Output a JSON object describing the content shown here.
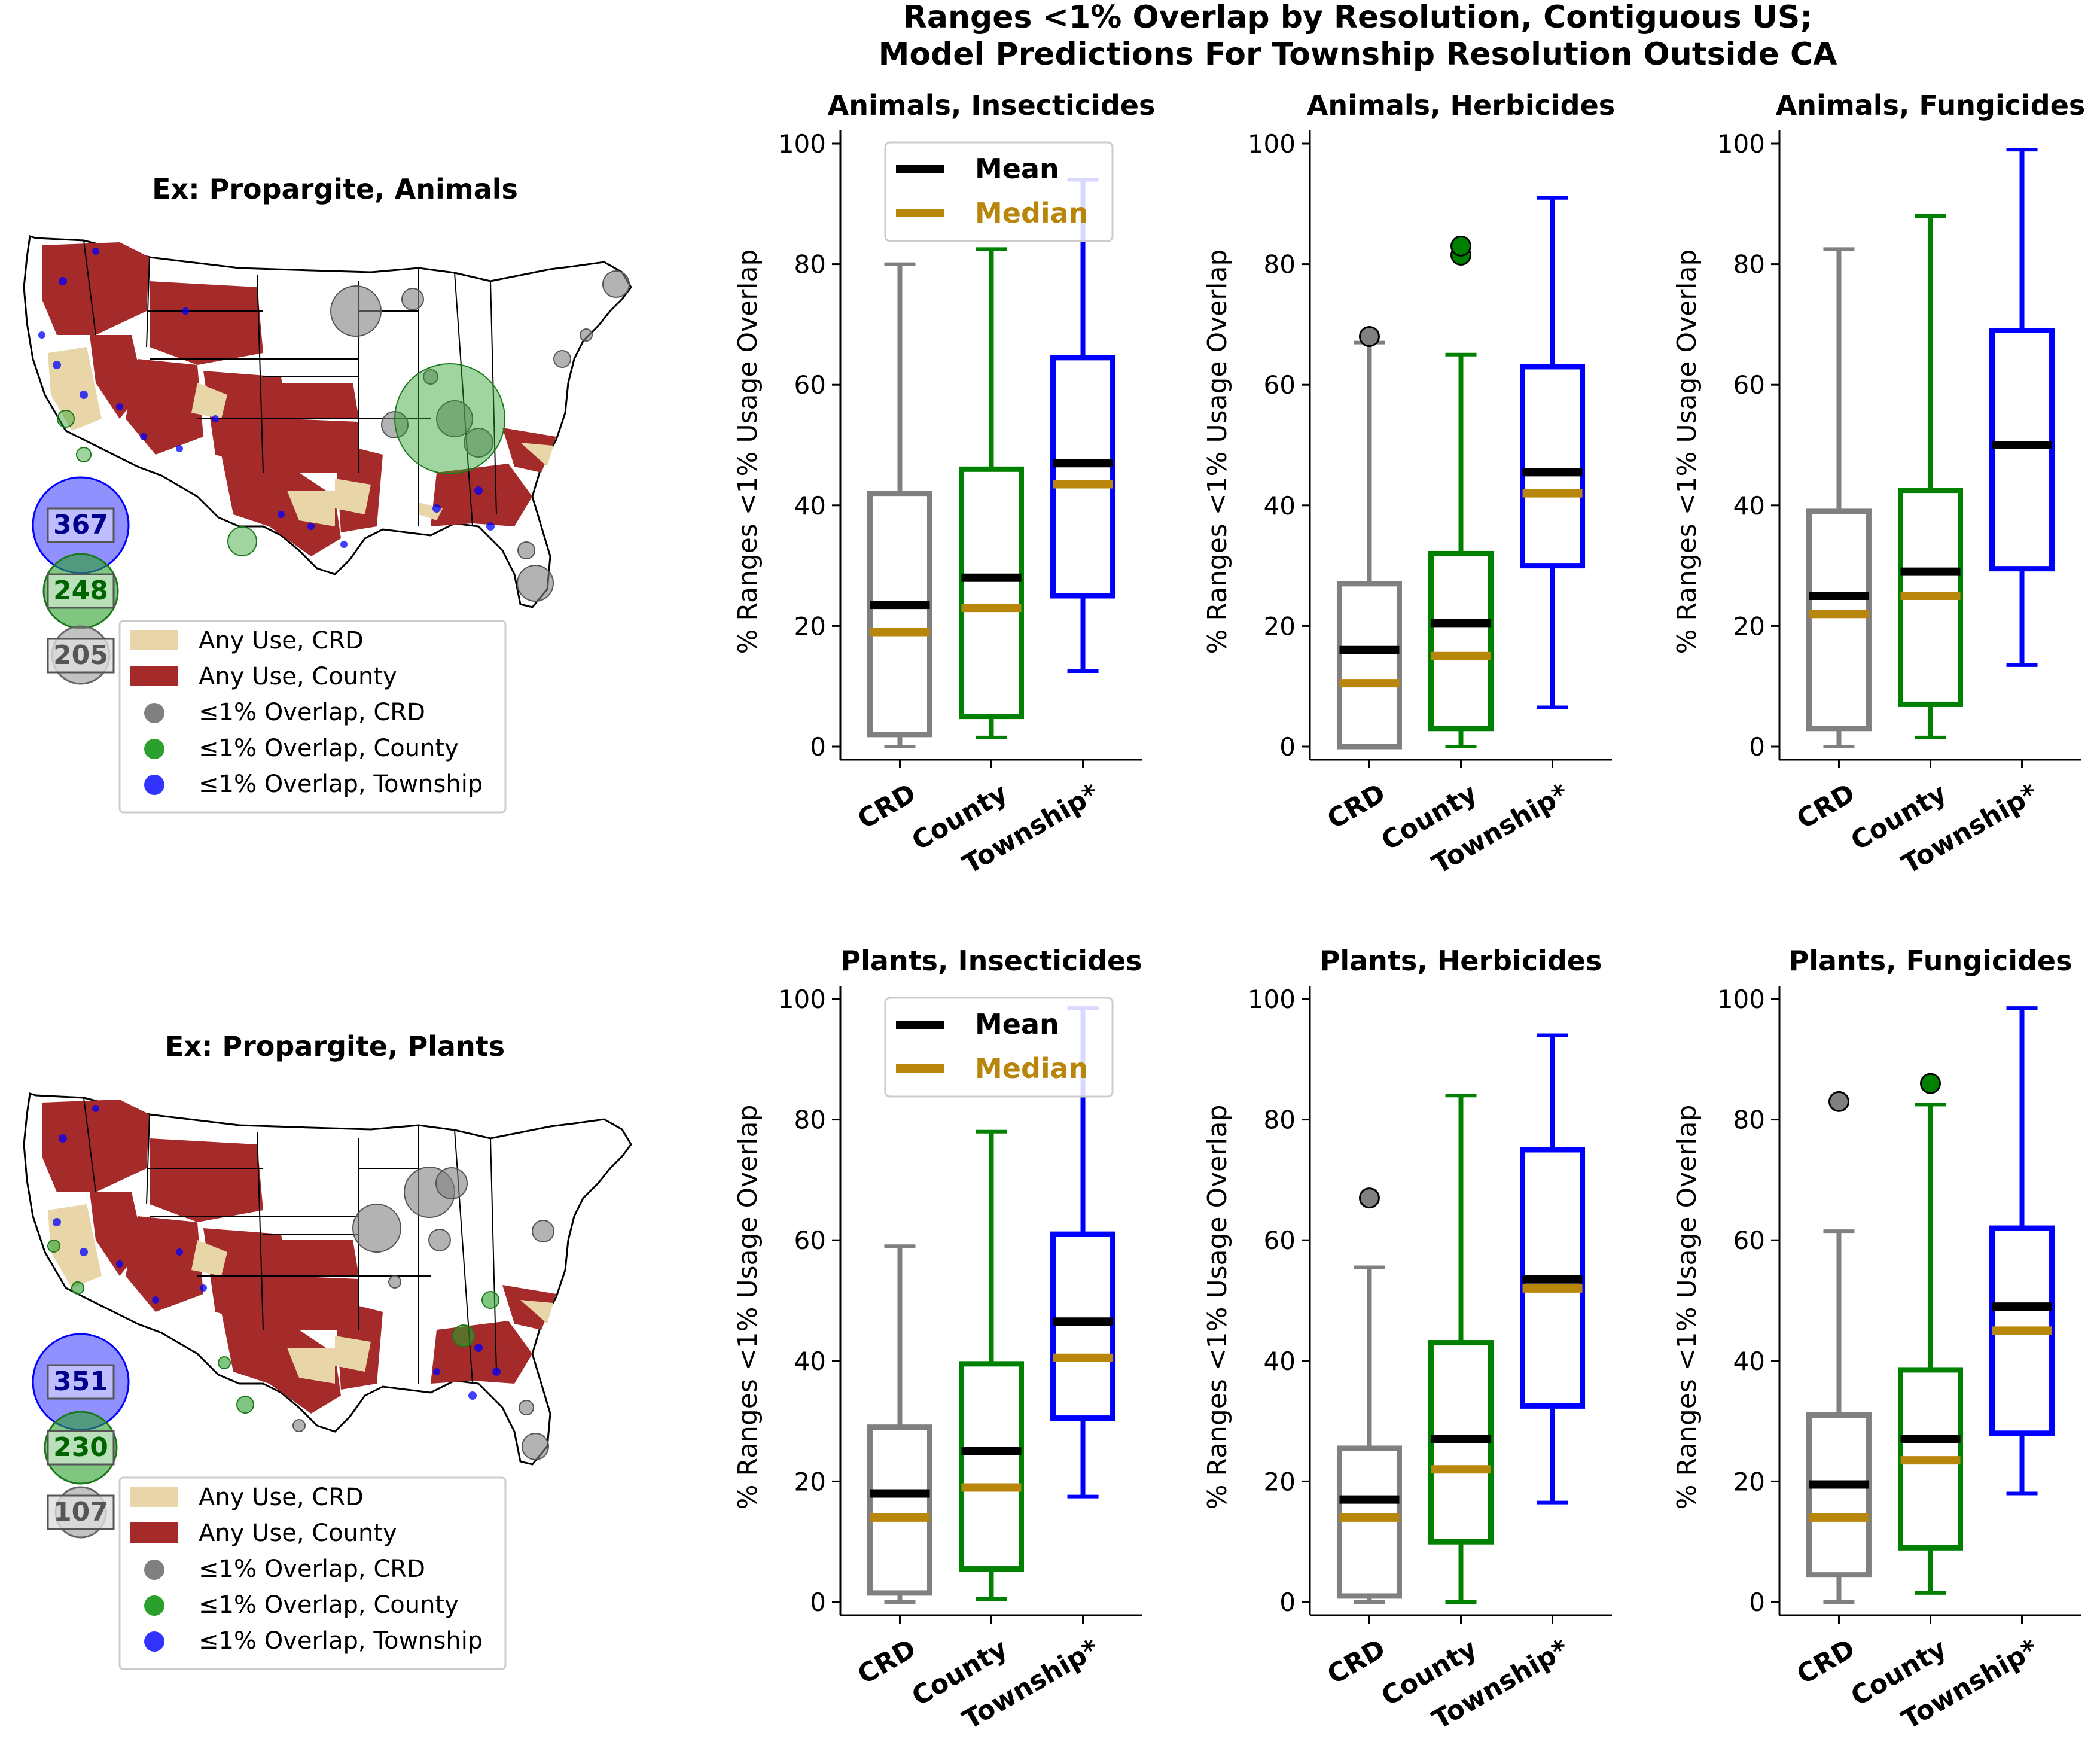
{
  "figure": {
    "title_line1": "Ranges <1% Overlap by Resolution, Contiguous US;",
    "title_line2": "Model Predictions For Township Resolution Outside CA"
  },
  "maps": [
    {
      "title": "Ex: Propargite, Animals",
      "counts": {
        "township": "367",
        "county": "248",
        "crd": "205"
      },
      "legend": [
        "Any Use, CRD",
        "Any Use, County",
        "≤1% Overlap, CRD",
        "≤1% Overlap, County",
        "≤1% Overlap, Township"
      ]
    },
    {
      "title": "Ex: Propargite, Plants",
      "counts": {
        "township": "351",
        "county": "230",
        "crd": "107"
      },
      "legend": [
        "Any Use, CRD",
        "Any Use, County",
        "≤1% Overlap, CRD",
        "≤1% Overlap, County",
        "≤1% Overlap, Township"
      ]
    }
  ],
  "colors": {
    "crd": "#808080",
    "county": "#008000",
    "township": "#0000ff",
    "mean": "#000000",
    "median": "#b8860b",
    "any_use_crd": "#e8d6a8",
    "any_use_county": "#a52a2a"
  },
  "legend_box": {
    "mean": "Mean",
    "median": "Median"
  },
  "chart_data": [
    {
      "type": "box",
      "title": "Animals, Insecticides",
      "ylabel": "% Ranges <1% Usage Overlap",
      "ylim": [
        0,
        100
      ],
      "yticks": [
        "0",
        "20",
        "40",
        "60",
        "80",
        "100"
      ],
      "categories": [
        "CRD",
        "County",
        "Township*"
      ],
      "boxes": [
        {
          "whisker_low": 0,
          "q1": 2,
          "median": 19,
          "mean": 23.5,
          "q3": 42,
          "whisker_high": 80,
          "outliers": []
        },
        {
          "whisker_low": 1.5,
          "q1": 5,
          "median": 23,
          "mean": 28,
          "q3": 46,
          "whisker_high": 82.5,
          "outliers": []
        },
        {
          "whisker_low": 12.5,
          "q1": 25,
          "median": 43.5,
          "mean": 47,
          "q3": 64.5,
          "whisker_high": 94,
          "outliers": []
        }
      ],
      "legend": true
    },
    {
      "type": "box",
      "title": "Animals, Herbicides",
      "ylabel": "% Ranges <1% Usage Overlap",
      "ylim": [
        0,
        100
      ],
      "yticks": [
        "0",
        "20",
        "40",
        "60",
        "80",
        "100"
      ],
      "categories": [
        "CRD",
        "County",
        "Township*"
      ],
      "boxes": [
        {
          "whisker_low": 0,
          "q1": 0,
          "median": 10.5,
          "mean": 16,
          "q3": 27,
          "whisker_high": 67,
          "outliers": [
            68
          ]
        },
        {
          "whisker_low": 0,
          "q1": 3,
          "median": 15,
          "mean": 20.5,
          "q3": 32,
          "whisker_high": 65,
          "outliers": [
            81.5,
            83
          ]
        },
        {
          "whisker_low": 6.5,
          "q1": 30,
          "median": 42,
          "mean": 45.5,
          "q3": 63,
          "whisker_high": 91,
          "outliers": []
        }
      ],
      "legend": false
    },
    {
      "type": "box",
      "title": "Animals, Fungicides",
      "ylabel": "% Ranges <1% Usage Overlap",
      "ylim": [
        0,
        100
      ],
      "yticks": [
        "0",
        "20",
        "40",
        "60",
        "80",
        "100"
      ],
      "categories": [
        "CRD",
        "County",
        "Township*"
      ],
      "boxes": [
        {
          "whisker_low": 0,
          "q1": 3,
          "median": 22,
          "mean": 25,
          "q3": 39,
          "whisker_high": 82.5,
          "outliers": []
        },
        {
          "whisker_low": 1.5,
          "q1": 7,
          "median": 25,
          "mean": 29,
          "q3": 42.5,
          "whisker_high": 88,
          "outliers": []
        },
        {
          "whisker_low": 13.5,
          "q1": 29.5,
          "median": 50,
          "mean": 50,
          "q3": 69,
          "whisker_high": 99,
          "outliers": []
        }
      ],
      "legend": false
    },
    {
      "type": "box",
      "title": "Plants, Insecticides",
      "ylabel": "% Ranges <1% Usage Overlap",
      "ylim": [
        0,
        100
      ],
      "yticks": [
        "0",
        "20",
        "40",
        "60",
        "80",
        "100"
      ],
      "categories": [
        "CRD",
        "County",
        "Township*"
      ],
      "boxes": [
        {
          "whisker_low": 0,
          "q1": 1.5,
          "median": 14,
          "mean": 18,
          "q3": 29,
          "whisker_high": 59,
          "outliers": []
        },
        {
          "whisker_low": 0.5,
          "q1": 5.5,
          "median": 19,
          "mean": 25,
          "q3": 39.5,
          "whisker_high": 78,
          "outliers": []
        },
        {
          "whisker_low": 17.5,
          "q1": 30.5,
          "median": 40.5,
          "mean": 46.5,
          "q3": 61,
          "whisker_high": 98.5,
          "outliers": []
        }
      ],
      "legend": true
    },
    {
      "type": "box",
      "title": "Plants, Herbicides",
      "ylabel": "% Ranges <1% Usage Overlap",
      "ylim": [
        0,
        100
      ],
      "yticks": [
        "0",
        "20",
        "40",
        "60",
        "80",
        "100"
      ],
      "categories": [
        "CRD",
        "County",
        "Township*"
      ],
      "boxes": [
        {
          "whisker_low": 0,
          "q1": 1,
          "median": 14,
          "mean": 17,
          "q3": 25.5,
          "whisker_high": 55.5,
          "outliers": [
            67
          ]
        },
        {
          "whisker_low": 0,
          "q1": 10,
          "median": 22,
          "mean": 27,
          "q3": 43,
          "whisker_high": 84,
          "outliers": []
        },
        {
          "whisker_low": 16.5,
          "q1": 32.5,
          "median": 52,
          "mean": 53.5,
          "q3": 75,
          "whisker_high": 94,
          "outliers": []
        }
      ],
      "legend": false
    },
    {
      "type": "box",
      "title": "Plants, Fungicides",
      "ylabel": "% Ranges <1% Usage Overlap",
      "ylim": [
        0,
        100
      ],
      "yticks": [
        "0",
        "20",
        "40",
        "60",
        "80",
        "100"
      ],
      "categories": [
        "CRD",
        "County",
        "Township*"
      ],
      "boxes": [
        {
          "whisker_low": 0,
          "q1": 4.5,
          "median": 14,
          "mean": 19.5,
          "q3": 31,
          "whisker_high": 61.5,
          "outliers": [
            83
          ]
        },
        {
          "whisker_low": 1.5,
          "q1": 9,
          "median": 23.5,
          "mean": 27,
          "q3": 38.5,
          "whisker_high": 82.5,
          "outliers": [
            86
          ]
        },
        {
          "whisker_low": 18,
          "q1": 28,
          "median": 45,
          "mean": 49,
          "q3": 62,
          "whisker_high": 98.5,
          "outliers": []
        }
      ],
      "legend": false
    }
  ]
}
